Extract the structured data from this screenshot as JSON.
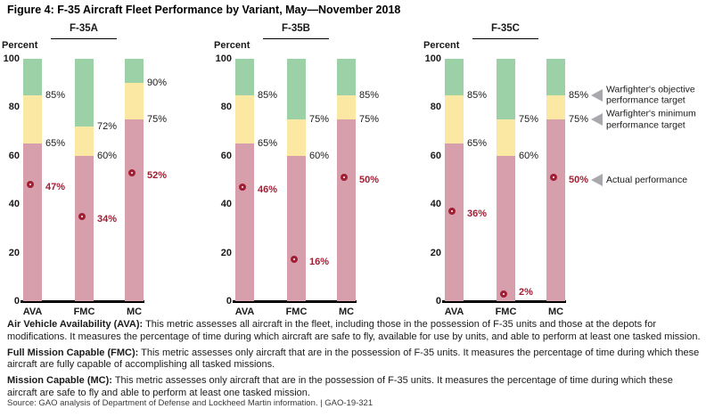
{
  "title": "Figure 4: F-35 Aircraft Fleet Performance by Variant, May—November 2018",
  "colors": {
    "below_minimum": "#d79fab",
    "between_targets": "#fbe8a2",
    "above_objective": "#9cd0a6",
    "actual_red": "#a21e33",
    "arrow_gray": "#a7a9ac"
  },
  "chart_data": {
    "type": "bar",
    "stacked": true,
    "axis_title": "Percent",
    "ylim": [
      0,
      100
    ],
    "yticks": [
      0,
      20,
      40,
      60,
      80,
      100
    ],
    "categories": [
      "AVA",
      "FMC",
      "MC"
    ],
    "panels": [
      {
        "variant": "F-35A",
        "bars": [
          {
            "category": "AVA",
            "minimum_target": 65,
            "objective_target": 85,
            "actual": 47
          },
          {
            "category": "FMC",
            "minimum_target": 60,
            "objective_target": 72,
            "actual": 34
          },
          {
            "category": "MC",
            "minimum_target": 75,
            "objective_target": 90,
            "actual": 52
          }
        ]
      },
      {
        "variant": "F-35B",
        "bars": [
          {
            "category": "AVA",
            "minimum_target": 65,
            "objective_target": 85,
            "actual": 46
          },
          {
            "category": "FMC",
            "minimum_target": 60,
            "objective_target": 75,
            "actual": 16
          },
          {
            "category": "MC",
            "minimum_target": 75,
            "objective_target": 85,
            "actual": 50
          }
        ]
      },
      {
        "variant": "F-35C",
        "bars": [
          {
            "category": "AVA",
            "minimum_target": 65,
            "objective_target": 85,
            "actual": 36
          },
          {
            "category": "FMC",
            "minimum_target": 60,
            "objective_target": 75,
            "actual": 2
          },
          {
            "category": "MC",
            "minimum_target": 75,
            "objective_target": 85,
            "actual": 50
          }
        ]
      }
    ],
    "legend": [
      {
        "label": "Warfighter's objective performance target",
        "at_value": 85
      },
      {
        "label": "Warfighter's minimum performance target",
        "at_value": 75
      },
      {
        "label": "Actual performance",
        "at_value": 50
      }
    ]
  },
  "notes": [
    {
      "term": "Air Vehicle Availability (AVA):",
      "text": "This metric assesses all aircraft in the fleet, including those in the possession of F-35 units and those at the depots for modifications. It measures the percentage of time during which aircraft are safe to fly, available for use by units, and able to perform at least one tasked mission."
    },
    {
      "term": "Full Mission Capable (FMC):",
      "text": "This metric assesses only aircraft that are in the possession of F-35 units. It measures the percentage of time during which these aircraft are fully capable of accomplishing all tasked missions."
    },
    {
      "term": "Mission Capable (MC):",
      "text": "This metric assesses only aircraft that are in the possession of F-35 units. It measures the percentage of time during which these aircraft are safe to fly and able to perform at least one tasked mission."
    }
  ],
  "source": "Source: GAO analysis of Department of Defense and Lockheed Martin information.  |  GAO-19-321"
}
